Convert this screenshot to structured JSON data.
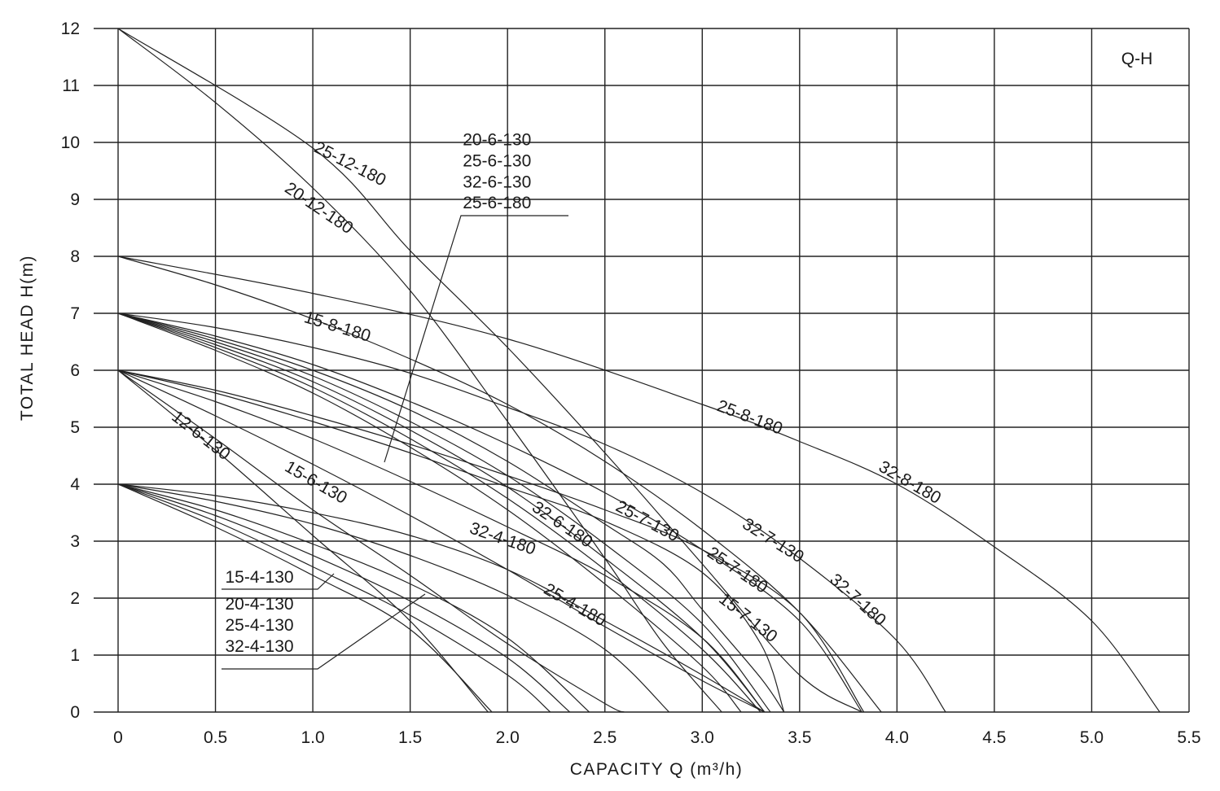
{
  "chart_data": {
    "type": "line",
    "title": "",
    "chart_tag": "Q-H",
    "xlabel": "CAPACITY  Q (m³/h)",
    "ylabel": "TOTAL HEAD H(m)",
    "xlim": [
      0,
      5.5
    ],
    "ylim": [
      0,
      12
    ],
    "x_ticks": [
      "0",
      "0.5",
      "1.0",
      "1.5",
      "2.0",
      "2.5",
      "3.0",
      "3.5",
      "4.0",
      "4.5",
      "5.0",
      "5.5"
    ],
    "y_ticks": [
      "0",
      "1",
      "2",
      "3",
      "4",
      "5",
      "6",
      "7",
      "8",
      "9",
      "10",
      "11",
      "12"
    ],
    "grid": true,
    "series": [
      {
        "name": "25-12-180",
        "points": [
          [
            0,
            12
          ],
          [
            1.0,
            9.9
          ],
          [
            1.5,
            8.1
          ],
          [
            2.0,
            6.4
          ],
          [
            2.5,
            4.55
          ],
          [
            3.0,
            2.6
          ],
          [
            3.5,
            0.65
          ],
          [
            3.82,
            0
          ]
        ]
      },
      {
        "name": "20-12-180",
        "points": [
          [
            0,
            12
          ],
          [
            0.5,
            10.7
          ],
          [
            1.0,
            9.2
          ],
          [
            1.5,
            7.4
          ],
          [
            2.0,
            5.1
          ],
          [
            2.5,
            2.7
          ],
          [
            2.8,
            1.2
          ],
          [
            3.1,
            0
          ]
        ]
      },
      {
        "name": "25-8-180",
        "points": [
          [
            0,
            8
          ],
          [
            1.0,
            7.35
          ],
          [
            2.0,
            6.55
          ],
          [
            3.0,
            5.4
          ],
          [
            3.5,
            4.75
          ],
          [
            4.0,
            4.0
          ],
          [
            4.5,
            2.9
          ],
          [
            5.0,
            1.6
          ],
          [
            5.35,
            0
          ]
        ]
      },
      {
        "name": "32-8-180",
        "points": [
          [
            0,
            8
          ],
          [
            0.5,
            7.5
          ],
          [
            1.0,
            6.9
          ],
          [
            1.5,
            6.2
          ],
          [
            2.0,
            5.4
          ],
          [
            2.5,
            4.4
          ],
          [
            3.0,
            3.2
          ],
          [
            3.5,
            1.75
          ],
          [
            3.92,
            0
          ]
        ]
      },
      {
        "name": "15-8-180",
        "points": [
          [
            0,
            7
          ],
          [
            0.5,
            6.55
          ],
          [
            1.0,
            6.0
          ],
          [
            1.5,
            5.3
          ],
          [
            2.0,
            4.4
          ],
          [
            2.5,
            3.3
          ],
          [
            2.8,
            2.6
          ],
          [
            3.0,
            1.8
          ],
          [
            3.3,
            0.6
          ],
          [
            3.42,
            0
          ]
        ]
      },
      {
        "name": "32-7-180",
        "points": [
          [
            0,
            7
          ],
          [
            0.5,
            6.75
          ],
          [
            1.0,
            6.4
          ],
          [
            1.5,
            5.95
          ],
          [
            2.0,
            5.35
          ],
          [
            2.5,
            4.7
          ],
          [
            3.0,
            3.85
          ],
          [
            3.5,
            2.7
          ],
          [
            4.0,
            1.25
          ],
          [
            4.25,
            0
          ]
        ]
      },
      {
        "name": "25-7-180",
        "points": [
          [
            0,
            7
          ],
          [
            0.5,
            6.6
          ],
          [
            1.0,
            6.1
          ],
          [
            1.5,
            5.45
          ],
          [
            2.0,
            4.7
          ],
          [
            2.5,
            3.85
          ],
          [
            3.0,
            2.85
          ],
          [
            3.5,
            1.6
          ],
          [
            3.82,
            0
          ]
        ]
      },
      {
        "name": "32-7-130",
        "points": [
          [
            0,
            6
          ],
          [
            0.5,
            5.65
          ],
          [
            1.0,
            5.2
          ],
          [
            1.5,
            4.7
          ],
          [
            2.0,
            4.15
          ],
          [
            2.5,
            3.55
          ],
          [
            3.0,
            2.85
          ],
          [
            3.5,
            1.75
          ],
          [
            3.83,
            0
          ]
        ]
      },
      {
        "name": "25-7-130",
        "points": [
          [
            0,
            6
          ],
          [
            0.5,
            5.6
          ],
          [
            1.0,
            5.1
          ],
          [
            1.5,
            4.55
          ],
          [
            2.0,
            3.95
          ],
          [
            2.5,
            3.35
          ],
          [
            3.0,
            2.45
          ],
          [
            3.3,
            1.2
          ],
          [
            3.42,
            0
          ]
        ]
      },
      {
        "name": "15-7-130",
        "points": [
          [
            0,
            6
          ],
          [
            0.5,
            5.45
          ],
          [
            1.0,
            4.8
          ],
          [
            1.5,
            4.05
          ],
          [
            2.0,
            3.25
          ],
          [
            2.5,
            2.4
          ],
          [
            3.0,
            1.3
          ],
          [
            3.32,
            0
          ]
        ]
      },
      {
        "name": "32-6-180",
        "points": [
          [
            0,
            6
          ],
          [
            0.5,
            5.2
          ],
          [
            1.0,
            4.35
          ],
          [
            1.5,
            3.45
          ],
          [
            2.0,
            2.5
          ],
          [
            2.5,
            1.5
          ],
          [
            3.0,
            0.55
          ],
          [
            3.32,
            0
          ]
        ]
      },
      {
        "name": "15-6-130",
        "points": [
          [
            0,
            6
          ],
          [
            0.5,
            4.8
          ],
          [
            1.0,
            3.55
          ],
          [
            1.5,
            2.4
          ],
          [
            2.0,
            1.2
          ],
          [
            2.5,
            0.15
          ],
          [
            2.6,
            0
          ]
        ]
      },
      {
        "name": "12-6-130",
        "points": [
          [
            0,
            6
          ],
          [
            0.5,
            4.6
          ],
          [
            1.0,
            3.1
          ],
          [
            1.5,
            1.6
          ],
          [
            1.9,
            0
          ]
        ]
      },
      {
        "name": "32-4-180",
        "points": [
          [
            0,
            4
          ],
          [
            0.5,
            3.8
          ],
          [
            1.0,
            3.5
          ],
          [
            1.5,
            3.1
          ],
          [
            2.0,
            2.5
          ],
          [
            2.5,
            1.6
          ],
          [
            3.0,
            0.65
          ],
          [
            3.32,
            0
          ]
        ]
      },
      {
        "name": "25-4-180",
        "points": [
          [
            0,
            4
          ],
          [
            0.5,
            3.7
          ],
          [
            1.0,
            3.3
          ],
          [
            1.5,
            2.75
          ],
          [
            2.0,
            2.05
          ],
          [
            2.5,
            1.1
          ],
          [
            2.83,
            0
          ]
        ]
      },
      {
        "name": "15-4-130",
        "points": [
          [
            0,
            4
          ],
          [
            0.5,
            3.55
          ],
          [
            1.0,
            2.95
          ],
          [
            1.5,
            2.25
          ],
          [
            2.0,
            1.3
          ],
          [
            2.42,
            0
          ]
        ]
      },
      {
        "name": "20-4-130",
        "points": [
          [
            0,
            4
          ],
          [
            0.5,
            3.45
          ],
          [
            1.0,
            2.75
          ],
          [
            1.5,
            1.95
          ],
          [
            2.0,
            0.95
          ],
          [
            2.32,
            0
          ]
        ]
      },
      {
        "name": "25-4-130",
        "points": [
          [
            0,
            4
          ],
          [
            0.5,
            3.35
          ],
          [
            1.0,
            2.55
          ],
          [
            1.5,
            1.7
          ],
          [
            2.0,
            0.65
          ],
          [
            2.22,
            0
          ]
        ]
      },
      {
        "name": "32-4-130",
        "points": [
          [
            0,
            4
          ],
          [
            0.5,
            3.25
          ],
          [
            1.0,
            2.4
          ],
          [
            1.5,
            1.45
          ],
          [
            1.92,
            0
          ]
        ]
      },
      {
        "name": "20-6-130",
        "points": [
          [
            0,
            7
          ],
          [
            0.5,
            6.45
          ],
          [
            1.0,
            5.8
          ],
          [
            1.5,
            4.95
          ],
          [
            2.0,
            3.95
          ],
          [
            2.5,
            2.7
          ],
          [
            3.0,
            1.3
          ],
          [
            3.32,
            0
          ]
        ]
      },
      {
        "name": "25-6-130",
        "points": [
          [
            0,
            7
          ],
          [
            0.5,
            6.4
          ],
          [
            1.0,
            5.7
          ],
          [
            1.5,
            4.8
          ],
          [
            2.0,
            3.75
          ],
          [
            2.5,
            2.5
          ],
          [
            3.0,
            1.1
          ],
          [
            3.3,
            0
          ]
        ]
      },
      {
        "name": "32-6-130",
        "points": [
          [
            0,
            7
          ],
          [
            0.5,
            6.35
          ],
          [
            1.0,
            5.6
          ],
          [
            1.5,
            4.65
          ],
          [
            2.0,
            3.55
          ],
          [
            2.5,
            2.25
          ],
          [
            3.0,
            0.8
          ],
          [
            3.2,
            0
          ]
        ]
      },
      {
        "name": "25-6-180",
        "points": [
          [
            0,
            7
          ],
          [
            0.5,
            6.5
          ],
          [
            1.0,
            5.9
          ],
          [
            1.5,
            5.1
          ],
          [
            2.0,
            4.15
          ],
          [
            2.5,
            2.95
          ],
          [
            3.0,
            1.55
          ],
          [
            3.35,
            0
          ]
        ]
      }
    ],
    "curve_labels": [
      {
        "text": "25-12-180",
        "x": 1.0,
        "y": 9.85,
        "angle": 27
      },
      {
        "text": "20-12-180",
        "x": 0.85,
        "y": 9.15,
        "angle": 34
      },
      {
        "text": "15-8-180",
        "x": 0.95,
        "y": 6.85,
        "angle": 17
      },
      {
        "text": "12-6-130",
        "x": 0.27,
        "y": 5.15,
        "angle": 38
      },
      {
        "text": "15-6-130",
        "x": 0.85,
        "y": 4.25,
        "angle": 30
      },
      {
        "text": "32-6-180",
        "x": 2.12,
        "y": 3.55,
        "angle": 34
      },
      {
        "text": "25-7-130",
        "x": 2.55,
        "y": 3.55,
        "angle": 28
      },
      {
        "text": "32-4-180",
        "x": 1.8,
        "y": 3.15,
        "angle": 19
      },
      {
        "text": "32-7-130",
        "x": 3.2,
        "y": 3.25,
        "angle": 32
      },
      {
        "text": "25-7-180",
        "x": 3.02,
        "y": 2.75,
        "angle": 34
      },
      {
        "text": "32-7-180",
        "x": 3.65,
        "y": 2.3,
        "angle": 42
      },
      {
        "text": "25-4-180",
        "x": 2.18,
        "y": 2.1,
        "angle": 30
      },
      {
        "text": "15-7-130",
        "x": 3.08,
        "y": 1.95,
        "angle": 38
      },
      {
        "text": "25-8-180",
        "x": 3.07,
        "y": 5.3,
        "angle": 21
      },
      {
        "text": "32-8-180",
        "x": 3.9,
        "y": 4.25,
        "angle": 30
      }
    ],
    "group_labels": [
      {
        "lines": [
          "20-6-130",
          "25-6-130",
          "32-6-130",
          "25-6-180"
        ],
        "x": 1.77,
        "y_top": 9.95,
        "line_step": 0.37
      },
      {
        "lines": [
          "15-4-130"
        ],
        "x": 0.55,
        "y_top": 2.27,
        "line_step": 0.37
      },
      {
        "lines": [
          "20-4-130",
          "25-4-130",
          "32-4-130"
        ],
        "x": 0.55,
        "y_top": 1.8,
        "line_step": 0.37
      }
    ]
  }
}
